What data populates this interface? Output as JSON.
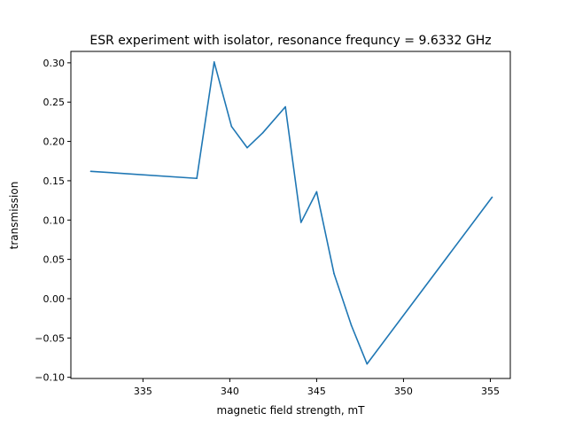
{
  "chart_data": {
    "type": "line",
    "title": "ESR experiment with isolator, resonance frequncy = 9.6332 GHz",
    "xlabel": "magnetic field strength, mT",
    "ylabel": "transmission",
    "xlim": [
      330.85,
      356.15
    ],
    "ylim": [
      -0.1015,
      0.3145
    ],
    "xticks": [
      335,
      340,
      345,
      350,
      355
    ],
    "yticks": [
      -0.1,
      -0.05,
      0.0,
      0.05,
      0.1,
      0.15,
      0.2,
      0.25,
      0.3
    ],
    "xtick_labels": [
      "335",
      "340",
      "345",
      "350",
      "355"
    ],
    "ytick_labels": [
      "−0.10",
      "−0.05",
      "0.00",
      "0.05",
      "0.10",
      "0.15",
      "0.20",
      "0.25",
      "0.30"
    ],
    "grid": false,
    "legend": false,
    "series": [
      {
        "color": "#1f77b4",
        "x": [
          332.0,
          338.1,
          339.1,
          340.1,
          341.0,
          341.9,
          343.2,
          344.1,
          345.0,
          346.0,
          347.0,
          347.9,
          355.1
        ],
        "y": [
          0.162,
          0.153,
          0.301,
          0.219,
          0.192,
          0.211,
          0.244,
          0.097,
          0.136,
          0.032,
          -0.034,
          -0.083,
          0.129
        ]
      }
    ]
  }
}
